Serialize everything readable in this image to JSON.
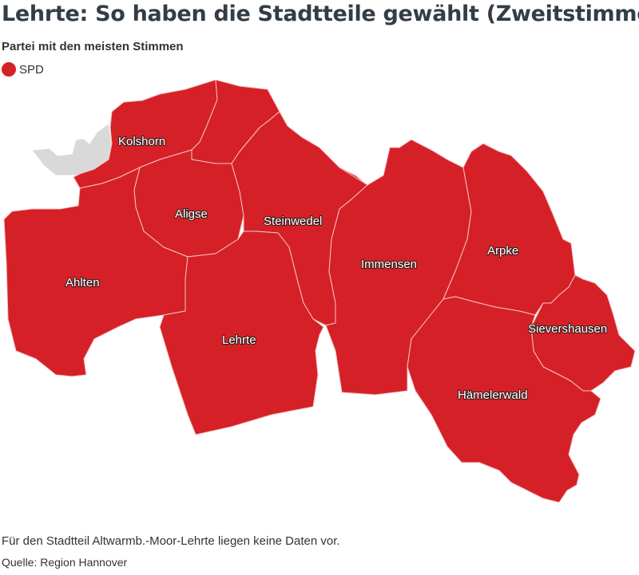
{
  "title": "Lehrte: So haben die Stadtteile gewählt (Zweitstimme)",
  "subtitle": "Partei mit den meisten Stimmen",
  "legend": [
    {
      "label": "SPD",
      "color": "#d62027"
    }
  ],
  "colors": {
    "party": "#d62027",
    "no_data": "#d9d9d9",
    "border": "#f4c4c4"
  },
  "districts": [
    {
      "name": "Kolshorn",
      "party": "SPD"
    },
    {
      "name": "Aligse",
      "party": "SPD"
    },
    {
      "name": "Steinwedel",
      "party": "SPD"
    },
    {
      "name": "Ahlten",
      "party": "SPD"
    },
    {
      "name": "Lehrte",
      "party": "SPD"
    },
    {
      "name": "Immensen",
      "party": "SPD"
    },
    {
      "name": "Arpke",
      "party": "SPD"
    },
    {
      "name": "Sievershausen",
      "party": "SPD"
    },
    {
      "name": "Hämelerwald",
      "party": "SPD"
    }
  ],
  "footer": {
    "note": "Für den Stadtteil Altwarmb.-Moor-Lehrte liegen keine Daten vor.",
    "source": "Quelle: Region Hannover"
  }
}
